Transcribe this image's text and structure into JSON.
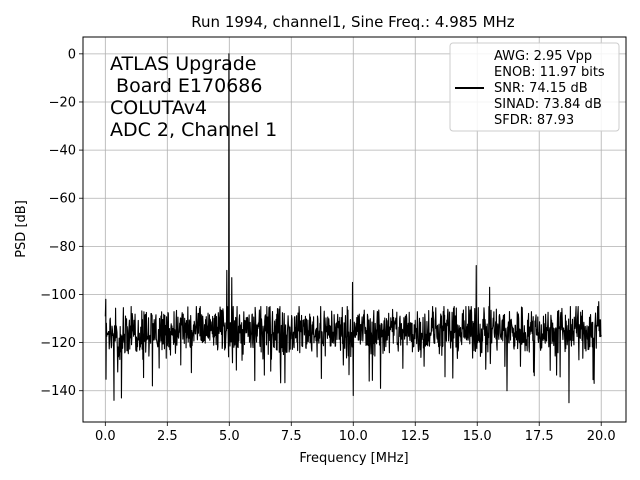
{
  "chart_data": {
    "type": "line",
    "title": "Run 1994, channel1, Sine Freq.: 4.985 MHz",
    "xlabel": "Frequency [MHz]",
    "ylabel": "PSD [dB]",
    "xlim": [
      -0.9,
      21.0
    ],
    "ylim": [
      -153,
      7
    ],
    "xticks": [
      0.0,
      2.5,
      5.0,
      7.5,
      10.0,
      12.5,
      15.0,
      17.5,
      20.0
    ],
    "xtick_labels": [
      "0.0",
      "2.5",
      "5.0",
      "7.5",
      "10.0",
      "12.5",
      "15.0",
      "17.5",
      "20.0"
    ],
    "yticks": [
      0,
      -20,
      -40,
      -60,
      -80,
      -100,
      -120,
      -140
    ],
    "ytick_labels": [
      "0",
      "−20",
      "−40",
      "−60",
      "−80",
      "−100",
      "−120",
      "−140"
    ],
    "grid": true,
    "legend_position": "top-right",
    "series_color": "#000000",
    "noise_floor": {
      "x_range": [
        0.0,
        20.0
      ],
      "center_db": -115,
      "typical_min_db": -125,
      "typical_max_db": -105,
      "deep_dips_db": -145
    },
    "peaks": [
      {
        "x": 4.985,
        "y": 0
      },
      {
        "x": 4.9,
        "y": -90
      },
      {
        "x": 5.1,
        "y": -93
      },
      {
        "x": 0.02,
        "y": -102
      },
      {
        "x": 9.97,
        "y": -95
      },
      {
        "x": 14.96,
        "y": -88
      },
      {
        "x": 15.5,
        "y": -97
      },
      {
        "x": 19.9,
        "y": -103
      }
    ],
    "dips": [
      {
        "x": 0.35,
        "y": -144
      },
      {
        "x": 0.65,
        "y": -143
      },
      {
        "x": 10.0,
        "y": -142
      },
      {
        "x": 18.7,
        "y": -145
      },
      {
        "x": 1.9,
        "y": -138
      },
      {
        "x": 11.1,
        "y": -139
      },
      {
        "x": 16.2,
        "y": -140
      }
    ],
    "annotation_lines": [
      "ATLAS Upgrade",
      " Board E170686",
      "COLUTAv4",
      "ADC 2, Channel 1"
    ],
    "legend_lines": [
      "AWG: 2.95 Vpp",
      "ENOB: 11.97 bits",
      "SNR: 74.15 dB",
      "SINAD: 73.84 dB",
      "SFDR: 87.93"
    ]
  }
}
